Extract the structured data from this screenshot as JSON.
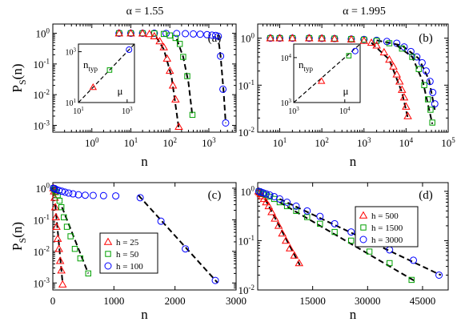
{
  "figure": {
    "column_titles": [
      "α = 1.55",
      "α = 1.995"
    ],
    "colors": {
      "red": "#ff0000",
      "green": "#00a000",
      "blue": "#0000ff",
      "fit": "#000000"
    },
    "marker_legend": {
      "triangle": "red",
      "square": "green",
      "circle": "blue"
    }
  },
  "chart_data": [
    {
      "id": "a",
      "type": "scatter",
      "label": "(a)",
      "xlabel": "n",
      "ylabel": "P_S(n)",
      "xscale": "log",
      "yscale": "log",
      "xlim": [
        0.1,
        5000
      ],
      "ylim": [
        0.0006,
        2
      ],
      "xticks": [
        {
          "v": 1,
          "t": "10^0"
        },
        {
          "v": 10,
          "t": "10^1"
        },
        {
          "v": 100,
          "t": "10^2"
        },
        {
          "v": 1000,
          "t": "10^3"
        }
      ],
      "yticks": [
        {
          "v": 0.001,
          "t": "10^-3"
        },
        {
          "v": 0.01,
          "t": "10^-2"
        },
        {
          "v": 0.1,
          "t": "10^-1"
        },
        {
          "v": 1,
          "t": "10^0"
        }
      ],
      "series": [
        {
          "marker": "circle",
          "color": "#0000ff",
          "x": [
            5,
            10,
            20,
            40,
            80,
            150,
            250,
            400,
            600,
            900,
            1200,
            1500,
            1750,
            2000,
            2300,
            2700
          ],
          "y": [
            1,
            1,
            1,
            1,
            0.99,
            0.98,
            0.97,
            0.95,
            0.93,
            0.9,
            0.87,
            0.85,
            0.8,
            0.18,
            0.015,
            0.0012
          ],
          "fit": {
            "x": [
              1700,
              2000,
              2400,
              2700
            ],
            "y": [
              0.9,
              0.18,
              0.012,
              0.0012
            ]
          }
        },
        {
          "marker": "square",
          "color": "#00a000",
          "x": [
            5,
            10,
            20,
            40,
            70,
            100,
            140,
            180,
            220,
            280,
            380
          ],
          "y": [
            1,
            1,
            1,
            0.99,
            0.95,
            0.85,
            0.7,
            0.45,
            0.17,
            0.04,
            0.0022
          ],
          "fit": {
            "x": [
              150,
              220,
              300,
              380
            ],
            "y": [
              0.65,
              0.17,
              0.025,
              0.002
            ]
          }
        },
        {
          "marker": "triangle",
          "color": "#ff0000",
          "x": [
            5,
            10,
            20,
            30,
            40,
            55,
            70,
            85,
            100,
            120,
            140,
            170
          ],
          "y": [
            1,
            1,
            0.99,
            0.95,
            0.8,
            0.55,
            0.35,
            0.15,
            0.06,
            0.02,
            0.007,
            0.0009
          ],
          "fit": {
            "x": [
              45,
              70,
              110,
              170
            ],
            "y": [
              0.75,
              0.3,
              0.04,
              0.0008
            ]
          }
        }
      ],
      "inset": {
        "xlabel": "μ",
        "ylabel": "n_typ",
        "xlim": [
          10,
          2000
        ],
        "ylim": [
          10,
          2000
        ],
        "xticks": [
          {
            "v": 10,
            "t": "10^1"
          },
          {
            "v": 1000,
            "t": "10^3"
          }
        ],
        "yticks": [
          {
            "v": 10,
            "t": "10^1"
          },
          {
            "v": 1000,
            "t": "10^3"
          }
        ],
        "points": [
          {
            "marker": "triangle",
            "x": 40,
            "y": 40
          },
          {
            "marker": "square",
            "x": 190,
            "y": 190
          },
          {
            "marker": "circle",
            "x": 1200,
            "y": 1200
          }
        ],
        "line": {
          "x": [
            10,
            2000
          ],
          "y": [
            10,
            2000
          ]
        }
      }
    },
    {
      "id": "b",
      "type": "scatter",
      "label": "(b)",
      "xlabel": "n",
      "ylabel": "",
      "xscale": "log",
      "yscale": "log",
      "xlim": [
        3,
        100000
      ],
      "ylim": [
        0.01,
        2
      ],
      "xticks": [
        {
          "v": 10,
          "t": "10^1"
        },
        {
          "v": 100,
          "t": "10^2"
        },
        {
          "v": 1000,
          "t": "10^3"
        },
        {
          "v": 10000,
          "t": "10^4"
        },
        {
          "v": 100000,
          "t": "10^5"
        }
      ],
      "yticks": [
        {
          "v": 0.01,
          "t": "10^-2"
        },
        {
          "v": 0.1,
          "t": "10^-1"
        },
        {
          "v": 1,
          "t": "10^0"
        }
      ],
      "series": [
        {
          "marker": "circle",
          "color": "#0000ff",
          "x": [
            6,
            10,
            20,
            50,
            100,
            200,
            500,
            1000,
            2000,
            3500,
            6000,
            9000,
            13000,
            18000,
            24000,
            30000,
            37000,
            43000,
            48000
          ],
          "y": [
            1,
            1,
            1,
            1,
            0.99,
            0.98,
            0.96,
            0.94,
            0.9,
            0.85,
            0.78,
            0.65,
            0.52,
            0.4,
            0.3,
            0.2,
            0.12,
            0.07,
            0.04
          ],
          "fit": {
            "x": [
              2000,
              8000,
              20000,
              35000,
              48000
            ],
            "y": [
              0.9,
              0.7,
              0.37,
              0.13,
              0.03
            ]
          }
        },
        {
          "marker": "square",
          "color": "#00a000",
          "x": [
            6,
            10,
            20,
            50,
            100,
            200,
            500,
            1000,
            2000,
            4000,
            8000,
            14000,
            20000,
            27000,
            33000,
            38000,
            42000
          ],
          "y": [
            1,
            1,
            1,
            1,
            0.99,
            0.98,
            0.96,
            0.93,
            0.88,
            0.78,
            0.6,
            0.4,
            0.22,
            0.1,
            0.05,
            0.03,
            0.016
          ],
          "fit": {
            "x": [
              6000,
              14000,
              25000,
              42000
            ],
            "y": [
              0.7,
              0.4,
              0.12,
              0.015
            ]
          }
        },
        {
          "marker": "triangle",
          "color": "#ff0000",
          "x": [
            6,
            10,
            20,
            50,
            100,
            200,
            500,
            1000,
            1500,
            2000,
            3000,
            4000,
            5000,
            6000,
            7000,
            8000,
            9000,
            10000,
            11000
          ],
          "y": [
            1,
            1,
            1,
            1,
            0.99,
            0.97,
            0.94,
            0.88,
            0.8,
            0.7,
            0.5,
            0.35,
            0.25,
            0.17,
            0.12,
            0.08,
            0.055,
            0.035,
            0.022
          ],
          "fit": {
            "x": [
              1500,
              4000,
              8000,
              11000
            ],
            "y": [
              0.8,
              0.35,
              0.07,
              0.02
            ]
          }
        }
      ],
      "inset": {
        "xlabel": "μ",
        "ylabel": "n_typ",
        "xlim": [
          1000,
          20000
        ],
        "ylim": [
          1000,
          20000
        ],
        "xticks": [
          {
            "v": 1000,
            "t": "10^3"
          },
          {
            "v": 10000,
            "t": "10^4"
          }
        ],
        "yticks": [
          {
            "v": 1000,
            "t": "10^3"
          },
          {
            "v": 10000,
            "t": "10^4"
          }
        ],
        "points": [
          {
            "marker": "triangle",
            "x": 3500,
            "y": 3000
          },
          {
            "marker": "square",
            "x": 12000,
            "y": 11000
          },
          {
            "marker": "circle",
            "x": 16000,
            "y": 14000
          }
        ],
        "line": {
          "x": [
            1000,
            20000
          ],
          "y": [
            1000,
            20000
          ]
        }
      }
    },
    {
      "id": "c",
      "type": "scatter",
      "label": "(c)",
      "xlabel": "n",
      "ylabel": "P_S(n)",
      "xscale": "linear",
      "yscale": "log",
      "xlim": [
        0,
        3000
      ],
      "ylim": [
        0.0006,
        1.5
      ],
      "xticks": [
        {
          "v": 0,
          "t": "0"
        },
        {
          "v": 1000,
          "t": "1000"
        },
        {
          "v": 2000,
          "t": "2000"
        },
        {
          "v": 3000,
          "t": "3000"
        }
      ],
      "yticks": [
        {
          "v": 0.001,
          "t": "10^-3"
        },
        {
          "v": 0.01,
          "t": "10^-2"
        },
        {
          "v": 0.1,
          "t": "10^-1"
        },
        {
          "v": 1,
          "t": "10^0"
        }
      ],
      "legend": {
        "position": "center-left",
        "entries": [
          {
            "marker": "triangle",
            "label": "h = 25"
          },
          {
            "marker": "square",
            "label": "h = 50"
          },
          {
            "marker": "circle",
            "label": "h = 100"
          }
        ]
      },
      "series": [
        {
          "marker": "triangle",
          "color": "#ff0000",
          "x": [
            10,
            20,
            30,
            40,
            50,
            60,
            80,
            100,
            120,
            140,
            160
          ],
          "y": [
            1,
            0.8,
            0.5,
            0.25,
            0.12,
            0.06,
            0.025,
            0.012,
            0.005,
            0.0025,
            0.0009
          ],
          "fit": {
            "x": [
              40,
              160
            ],
            "y": [
              0.3,
              0.001
            ]
          }
        },
        {
          "marker": "square",
          "color": "#00a000",
          "x": [
            10,
            30,
            50,
            80,
            110,
            140,
            180,
            230,
            290,
            360,
            450,
            580
          ],
          "y": [
            1,
            0.9,
            0.75,
            0.6,
            0.4,
            0.25,
            0.12,
            0.06,
            0.03,
            0.012,
            0.006,
            0.002
          ],
          "fit": {
            "x": [
              150,
              580
            ],
            "y": [
              0.25,
              0.002
            ]
          }
        },
        {
          "marker": "circle",
          "color": "#0000ff",
          "x": [
            10,
            30,
            60,
            100,
            150,
            200,
            260,
            330,
            420,
            530,
            660,
            830,
            1030,
            1430,
            1770,
            2170,
            2660
          ],
          "y": [
            1,
            0.97,
            0.9,
            0.85,
            0.8,
            0.75,
            0.7,
            0.66,
            0.62,
            0.6,
            0.59,
            0.58,
            0.57,
            0.5,
            0.09,
            0.012,
            0.0012
          ],
          "fit": {
            "x": [
              1400,
              2700
            ],
            "y": [
              0.6,
              0.001
            ]
          }
        }
      ]
    },
    {
      "id": "d",
      "type": "scatter",
      "label": "(d)",
      "xlabel": "n",
      "ylabel": "",
      "xscale": "linear",
      "yscale": "log",
      "xlim": [
        0,
        52000
      ],
      "ylim": [
        0.01,
        1.5
      ],
      "xticks": [
        {
          "v": 15000,
          "t": "15000"
        },
        {
          "v": 30000,
          "t": "30000"
        },
        {
          "v": 45000,
          "t": "45000"
        }
      ],
      "yticks": [
        {
          "v": 0.01,
          "t": "10^-2"
        },
        {
          "v": 0.1,
          "t": "10^-1"
        },
        {
          "v": 1,
          "t": "10^0"
        }
      ],
      "legend": {
        "position": "top-center",
        "entries": [
          {
            "marker": "triangle",
            "label": "h = 500"
          },
          {
            "marker": "square",
            "label": "h = 1500"
          },
          {
            "marker": "circle",
            "label": "h = 3000"
          }
        ]
      },
      "series": [
        {
          "marker": "triangle",
          "color": "#ff0000",
          "x": [
            200,
            500,
            800,
            1200,
            1700,
            2300,
            3000,
            3800,
            4700,
            5700,
            6700,
            7700,
            8800,
            10000,
            11300
          ],
          "y": [
            1,
            0.95,
            0.88,
            0.8,
            0.7,
            0.6,
            0.5,
            0.38,
            0.28,
            0.2,
            0.14,
            0.1,
            0.07,
            0.05,
            0.035
          ],
          "fit": {
            "x": [
              2000,
              11500
            ],
            "y": [
              0.7,
              0.032
            ]
          }
        },
        {
          "marker": "square",
          "color": "#00a000",
          "x": [
            300,
            800,
            1500,
            2300,
            3300,
            4500,
            6000,
            8000,
            10500,
            13500,
            17000,
            21000,
            25500,
            30500,
            36000,
            42000
          ],
          "y": [
            1,
            0.96,
            0.9,
            0.85,
            0.78,
            0.7,
            0.6,
            0.5,
            0.4,
            0.3,
            0.22,
            0.15,
            0.1,
            0.06,
            0.035,
            0.016
          ],
          "fit": {
            "x": [
              6000,
              43000
            ],
            "y": [
              0.6,
              0.015
            ]
          }
        },
        {
          "marker": "circle",
          "color": "#0000ff",
          "x": [
            300,
            800,
            1500,
            2300,
            3300,
            4500,
            6000,
            8000,
            10500,
            13500,
            17000,
            21000,
            25500,
            30500,
            36000,
            42500,
            49500
          ],
          "y": [
            1,
            0.97,
            0.93,
            0.89,
            0.84,
            0.78,
            0.7,
            0.6,
            0.5,
            0.4,
            0.31,
            0.22,
            0.15,
            0.1,
            0.065,
            0.04,
            0.02
          ],
          "fit": {
            "x": [
              6000,
              50000
            ],
            "y": [
              0.7,
              0.02
            ]
          }
        }
      ]
    }
  ]
}
